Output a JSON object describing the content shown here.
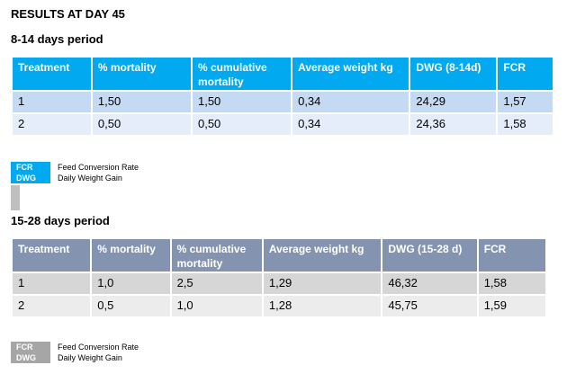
{
  "title": "RESULTS AT DAY 45",
  "section1": {
    "heading": "8-14 days period",
    "headers": [
      "Treatment",
      "% mortality",
      "% cumulative mortality",
      "Average weight kg",
      "DWG (8-14d)",
      "FCR"
    ],
    "rows": [
      [
        "1",
        "1,50",
        "1,50",
        "0,34",
        "24,29",
        "1,57"
      ],
      [
        "2",
        "0,50",
        "0,50",
        "0,34",
        "24,36",
        "1,58"
      ]
    ],
    "legend": [
      {
        "abbr": "FCR",
        "desc": "Feed Conversion Rate"
      },
      {
        "abbr": "DWG",
        "desc": "Daily Weight Gain"
      }
    ]
  },
  "section2": {
    "heading": "15-28 days period",
    "headers": [
      "Treatment",
      "% mortality",
      "% cumulative mortality",
      "Average weight kg",
      "DWG (15-28 d)",
      "FCR"
    ],
    "rows": [
      [
        "1",
        "1,0",
        "2,5",
        "1,29",
        "46,32",
        "1,58"
      ],
      [
        "2",
        "0,5",
        "1,0",
        "1,28",
        "45,75",
        "1,59"
      ]
    ],
    "legend": [
      {
        "abbr": "FCR",
        "desc": "Feed Conversion Rate"
      },
      {
        "abbr": "DWG",
        "desc": "Daily Weight Gain"
      }
    ]
  },
  "colors": {
    "table1_header": "#00a9f0",
    "table1_row1": "#c3daf2",
    "table1_row2": "#e4edf9",
    "table2_header": "#8494b0",
    "table2_row1": "#d6d6d6",
    "table2_row2": "#ececec"
  }
}
